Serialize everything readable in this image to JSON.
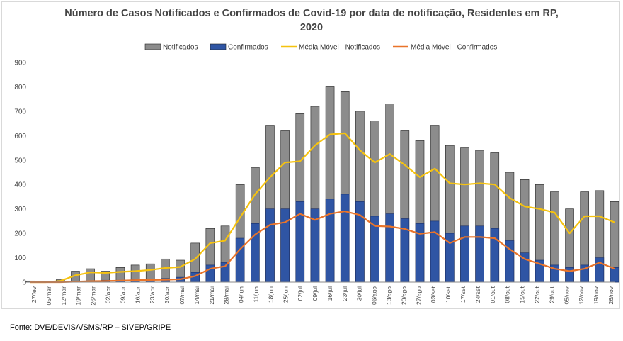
{
  "chart_data": {
    "type": "bar",
    "title": "Número de Casos Notificados e Confirmados de Covid-19 por data de notificação, Residentes em RP,",
    "title_line2": "2020",
    "legend": [
      {
        "name": "Notificados",
        "kind": "bar",
        "color": "#8c8c8c"
      },
      {
        "name": "Confirmados",
        "kind": "bar",
        "color": "#2f55a4"
      },
      {
        "name": "Média Móvel - Notificados",
        "kind": "line",
        "color": "#f5c20f"
      },
      {
        "name": "Média Móvel - Confirmados",
        "kind": "line",
        "color": "#e9742a"
      }
    ],
    "legend_position": "top",
    "ylim": [
      0,
      900
    ],
    "yticks": [
      0,
      100,
      200,
      300,
      400,
      500,
      600,
      700,
      800,
      900
    ],
    "grid": false,
    "x_start": "2020-02-27",
    "x_end": "2020-11-26",
    "xtick_labels": [
      "27/fev",
      "05/mar",
      "12/mar",
      "19/mar",
      "26/mar",
      "02/abr",
      "09/abr",
      "16/abr",
      "23/abr",
      "30/abr",
      "07/mai",
      "14/mai",
      "21/mai",
      "28/mai",
      "04/jun",
      "11/jun",
      "18/jun",
      "25/jun",
      "02/jul",
      "09/jul",
      "16/jul",
      "23/jul",
      "30/jul",
      "06/ago",
      "13/ago",
      "20/ago",
      "27/ago",
      "03/set",
      "10/set",
      "17/set",
      "24/set",
      "01/out",
      "08/out",
      "15/out",
      "22/out",
      "29/out",
      "05/nov",
      "12/nov",
      "19/nov",
      "26/nov"
    ],
    "series": [
      {
        "name": "Média Móvel - Notificados",
        "x": [
          "2020-02-27",
          "2020-03-05",
          "2020-03-12",
          "2020-03-19",
          "2020-03-26",
          "2020-04-02",
          "2020-04-09",
          "2020-04-16",
          "2020-04-23",
          "2020-04-30",
          "2020-05-07",
          "2020-05-14",
          "2020-05-21",
          "2020-05-28",
          "2020-06-04",
          "2020-06-11",
          "2020-06-18",
          "2020-06-25",
          "2020-07-02",
          "2020-07-09",
          "2020-07-16",
          "2020-07-23",
          "2020-07-30",
          "2020-08-06",
          "2020-08-13",
          "2020-08-20",
          "2020-08-27",
          "2020-09-03",
          "2020-09-10",
          "2020-09-17",
          "2020-09-24",
          "2020-10-01",
          "2020-10-08",
          "2020-10-15",
          "2020-10-22",
          "2020-10-29",
          "2020-11-05",
          "2020-11-12",
          "2020-11-19",
          "2020-11-26"
        ],
        "values": [
          0,
          0,
          5,
          28,
          40,
          38,
          42,
          45,
          50,
          58,
          62,
          95,
          160,
          170,
          265,
          360,
          430,
          490,
          495,
          560,
          605,
          610,
          540,
          490,
          525,
          480,
          430,
          465,
          405,
          400,
          405,
          400,
          345,
          310,
          300,
          285,
          200,
          270,
          270,
          245
        ]
      },
      {
        "name": "Média Móvel - Confirmados",
        "x": [
          "2020-02-27",
          "2020-03-05",
          "2020-03-12",
          "2020-03-19",
          "2020-03-26",
          "2020-04-02",
          "2020-04-09",
          "2020-04-16",
          "2020-04-23",
          "2020-04-30",
          "2020-05-07",
          "2020-05-14",
          "2020-05-21",
          "2020-05-28",
          "2020-06-04",
          "2020-06-11",
          "2020-06-18",
          "2020-06-25",
          "2020-07-02",
          "2020-07-09",
          "2020-07-16",
          "2020-07-23",
          "2020-07-30",
          "2020-08-06",
          "2020-08-13",
          "2020-08-20",
          "2020-08-27",
          "2020-09-03",
          "2020-09-10",
          "2020-09-17",
          "2020-09-24",
          "2020-10-01",
          "2020-10-08",
          "2020-10-15",
          "2020-10-22",
          "2020-10-29",
          "2020-11-05",
          "2020-11-12",
          "2020-11-19",
          "2020-11-26"
        ],
        "values": [
          0,
          0,
          0,
          2,
          4,
          5,
          6,
          8,
          9,
          10,
          12,
          25,
          55,
          65,
          135,
          195,
          235,
          245,
          280,
          255,
          280,
          290,
          275,
          230,
          228,
          218,
          198,
          205,
          160,
          185,
          185,
          180,
          135,
          95,
          75,
          55,
          45,
          55,
          80,
          55
        ]
      },
      {
        "name": "Notificados",
        "x": [
          "2020-02-27",
          "2020-03-05",
          "2020-03-12",
          "2020-03-19",
          "2020-03-26",
          "2020-04-02",
          "2020-04-09",
          "2020-04-16",
          "2020-04-23",
          "2020-04-30",
          "2020-05-07",
          "2020-05-14",
          "2020-05-21",
          "2020-05-28",
          "2020-06-04",
          "2020-06-11",
          "2020-06-18",
          "2020-06-25",
          "2020-07-02",
          "2020-07-09",
          "2020-07-16",
          "2020-07-23",
          "2020-07-30",
          "2020-08-06",
          "2020-08-13",
          "2020-08-20",
          "2020-08-27",
          "2020-09-03",
          "2020-09-10",
          "2020-09-17",
          "2020-09-24",
          "2020-10-01",
          "2020-10-08",
          "2020-10-15",
          "2020-10-22",
          "2020-10-29",
          "2020-11-05",
          "2020-11-12",
          "2020-11-19",
          "2020-11-26"
        ],
        "values": [
          5,
          0,
          10,
          45,
          55,
          45,
          60,
          70,
          75,
          95,
          90,
          160,
          220,
          230,
          400,
          470,
          640,
          620,
          690,
          720,
          800,
          780,
          700,
          660,
          730,
          620,
          580,
          640,
          560,
          550,
          540,
          530,
          450,
          420,
          400,
          370,
          300,
          370,
          375,
          330
        ]
      },
      {
        "name": "Confirmados",
        "x": [
          "2020-02-27",
          "2020-03-05",
          "2020-03-12",
          "2020-03-19",
          "2020-03-26",
          "2020-04-02",
          "2020-04-09",
          "2020-04-16",
          "2020-04-23",
          "2020-04-30",
          "2020-05-07",
          "2020-05-14",
          "2020-05-21",
          "2020-05-28",
          "2020-06-04",
          "2020-06-11",
          "2020-06-18",
          "2020-06-25",
          "2020-07-02",
          "2020-07-09",
          "2020-07-16",
          "2020-07-23",
          "2020-07-30",
          "2020-08-06",
          "2020-08-13",
          "2020-08-20",
          "2020-08-27",
          "2020-09-03",
          "2020-09-10",
          "2020-09-17",
          "2020-09-24",
          "2020-10-01",
          "2020-10-08",
          "2020-10-15",
          "2020-10-22",
          "2020-10-29",
          "2020-11-05",
          "2020-11-12",
          "2020-11-19",
          "2020-11-26"
        ],
        "values": [
          0,
          0,
          0,
          5,
          5,
          8,
          8,
          10,
          10,
          15,
          20,
          40,
          70,
          80,
          180,
          240,
          300,
          300,
          330,
          300,
          340,
          360,
          330,
          270,
          280,
          260,
          240,
          250,
          200,
          230,
          230,
          220,
          170,
          120,
          90,
          70,
          60,
          70,
          100,
          60
        ]
      }
    ]
  },
  "source": "Fonte: DVE/DEVISA/SMS/RP – SIVEP/GRIPE"
}
